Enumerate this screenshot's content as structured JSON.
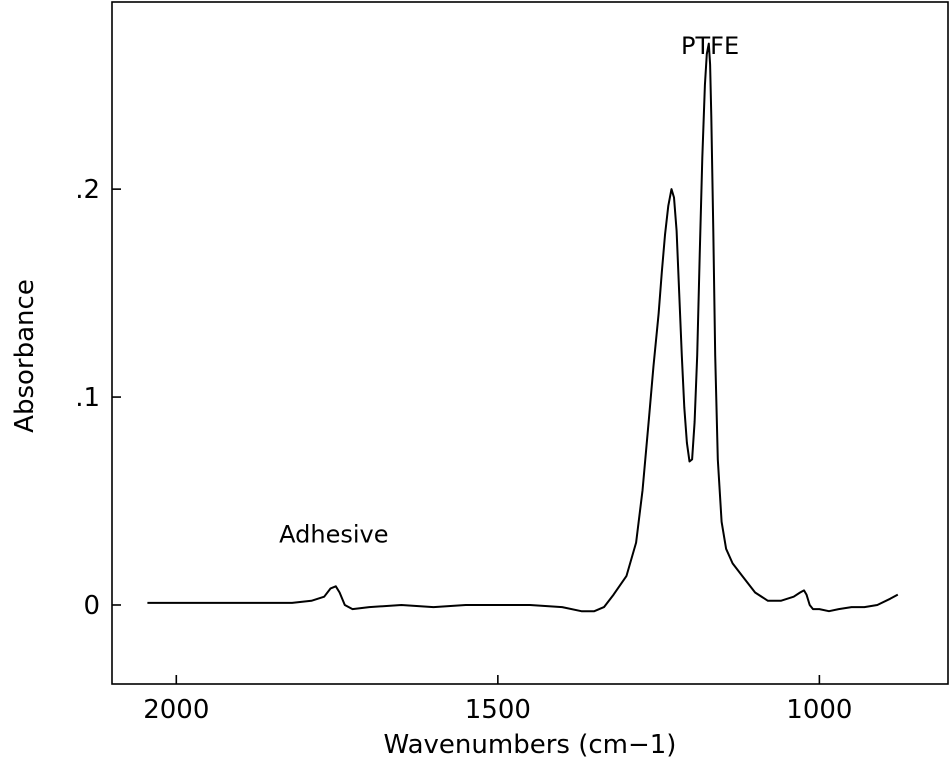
{
  "chart_data": {
    "type": "line",
    "title": "",
    "xlabel": "Wavenumbers (cm−1)",
    "ylabel": "Absorbance",
    "x_reversed": true,
    "xlim": [
      2100,
      800
    ],
    "ylim": [
      -0.038,
      0.29
    ],
    "grid": false,
    "xticks": [
      {
        "value": 2000,
        "label": "2000"
      },
      {
        "value": 1500,
        "label": "1500"
      },
      {
        "value": 1000,
        "label": "1000"
      }
    ],
    "yticks": [
      {
        "value": 0,
        "label": "0"
      },
      {
        "value": 0.1,
        "label": ".1"
      },
      {
        "value": 0.2,
        "label": ".2"
      }
    ],
    "annotations": [
      {
        "text": "PTFE",
        "x": 1170,
        "y": 0.265
      },
      {
        "text": "Adhesive",
        "x": 1755,
        "y": 0.03
      }
    ],
    "series": [
      {
        "x": [
          2045,
          1980,
          1900,
          1820,
          1790,
          1770,
          1760,
          1752,
          1746,
          1738,
          1726,
          1700,
          1650,
          1600,
          1550,
          1500,
          1450,
          1400,
          1370,
          1350,
          1335,
          1320,
          1300,
          1285,
          1275,
          1265,
          1258,
          1250,
          1245,
          1240,
          1235,
          1230,
          1226,
          1222,
          1218,
          1214,
          1210,
          1206,
          1202,
          1198,
          1194,
          1190,
          1186,
          1182,
          1178,
          1175,
          1172,
          1170,
          1168,
          1165,
          1162,
          1158,
          1152,
          1145,
          1135,
          1120,
          1100,
          1080,
          1060,
          1040,
          1030,
          1024,
          1020,
          1015,
          1010,
          1000,
          985,
          970,
          950,
          930,
          910,
          890,
          878
        ],
        "y": [
          0.001,
          0.001,
          0.001,
          0.001,
          0.002,
          0.004,
          0.008,
          0.009,
          0.006,
          0.0,
          -0.002,
          -0.001,
          0.0,
          -0.001,
          0.0,
          0.0,
          0.0,
          -0.001,
          -0.003,
          -0.003,
          -0.001,
          0.005,
          0.014,
          0.03,
          0.055,
          0.09,
          0.115,
          0.14,
          0.16,
          0.178,
          0.192,
          0.2,
          0.196,
          0.18,
          0.15,
          0.12,
          0.095,
          0.078,
          0.069,
          0.07,
          0.088,
          0.12,
          0.17,
          0.215,
          0.25,
          0.265,
          0.27,
          0.26,
          0.235,
          0.18,
          0.12,
          0.07,
          0.04,
          0.027,
          0.02,
          0.014,
          0.006,
          0.002,
          0.002,
          0.004,
          0.006,
          0.007,
          0.005,
          0.0,
          -0.002,
          -0.002,
          -0.003,
          -0.002,
          -0.001,
          -0.001,
          0.0,
          0.003,
          0.005
        ]
      }
    ]
  }
}
